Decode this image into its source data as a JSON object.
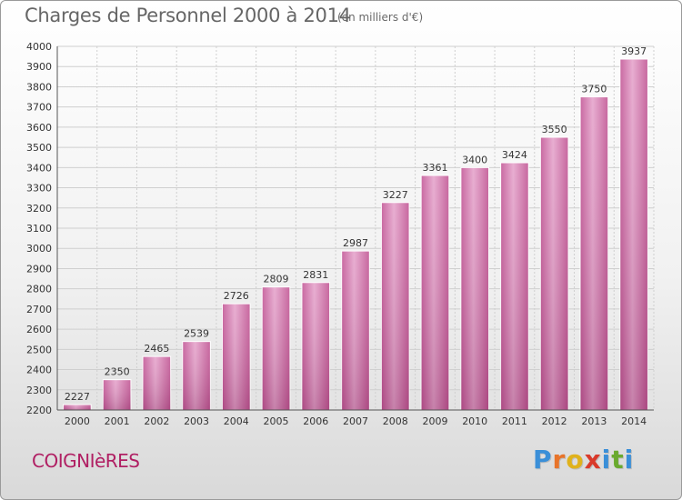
{
  "header": {
    "title": "Charges de Personnel 2000 à 2014",
    "subtitle": "(en milliers d'€)"
  },
  "footer": {
    "city": "COIGNIèRES",
    "logo_letters": [
      "P",
      "r",
      "o",
      "x",
      "i",
      "t",
      "i"
    ],
    "logo_colors": [
      "#3a8fd8",
      "#e8742a",
      "#e0b21c",
      "#d93a2b",
      "#3a8fd8",
      "#6aaa2e",
      "#3a8fd8"
    ]
  },
  "chart_data": {
    "type": "bar",
    "title": "Charges de Personnel 2000 à 2014",
    "subtitle": "(en milliers d'€)",
    "categories": [
      "2000",
      "2001",
      "2002",
      "2003",
      "2004",
      "2005",
      "2006",
      "2007",
      "2008",
      "2009",
      "2010",
      "2011",
      "2012",
      "2013",
      "2014"
    ],
    "values": [
      2227,
      2350,
      2465,
      2539,
      2726,
      2809,
      2831,
      2987,
      3227,
      3361,
      3400,
      3424,
      3550,
      3750,
      3937
    ],
    "ylim": [
      2200,
      4000
    ],
    "yticks": [
      2200,
      2300,
      2400,
      2500,
      2600,
      2700,
      2800,
      2900,
      3000,
      3100,
      3200,
      3300,
      3400,
      3500,
      3600,
      3700,
      3800,
      3900,
      4000
    ],
    "grid": true,
    "bar_color": "#d36fa8",
    "xlabel": "",
    "ylabel": ""
  }
}
